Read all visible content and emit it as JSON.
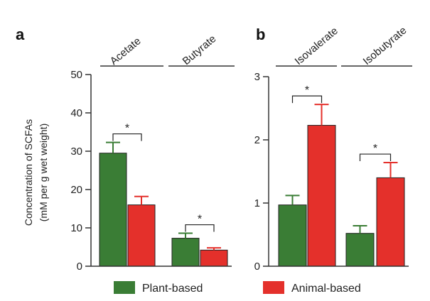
{
  "colors": {
    "plant": "#3a7d35",
    "animal": "#e4302b",
    "axis": "#333333"
  },
  "legend": [
    {
      "label": "Plant-based",
      "color": "#3a7d35"
    },
    {
      "label": "Animal-based",
      "color": "#e4302b"
    }
  ],
  "ylabel_line1": "Concentration of SCFAs",
  "ylabel_line2": "(mM per g wet weight)",
  "chart_data": [
    {
      "panel": "a",
      "type": "bar",
      "ylim": [
        0,
        50
      ],
      "yticks": [
        "0",
        "10",
        "20",
        "30",
        "40",
        "50"
      ],
      "categories": [
        "Acetate",
        "Butyrate"
      ],
      "series": [
        {
          "name": "Plant-based",
          "values": [
            29.5,
            7.3
          ],
          "errors": [
            2.8,
            1.3
          ]
        },
        {
          "name": "Animal-based",
          "values": [
            16.0,
            4.2
          ],
          "errors": [
            2.2,
            0.6
          ]
        }
      ],
      "significance": [
        "*",
        "*"
      ]
    },
    {
      "panel": "b",
      "type": "bar",
      "ylim": [
        0,
        3
      ],
      "yticks": [
        "0",
        "1",
        "2",
        "3"
      ],
      "categories": [
        "Isovalerate",
        "Isobutyrate"
      ],
      "series": [
        {
          "name": "Plant-based",
          "values": [
            0.97,
            0.52
          ],
          "errors": [
            0.15,
            0.12
          ]
        },
        {
          "name": "Animal-based",
          "values": [
            2.23,
            1.4
          ],
          "errors": [
            0.33,
            0.24
          ]
        }
      ],
      "significance": [
        "*",
        "*"
      ]
    }
  ]
}
